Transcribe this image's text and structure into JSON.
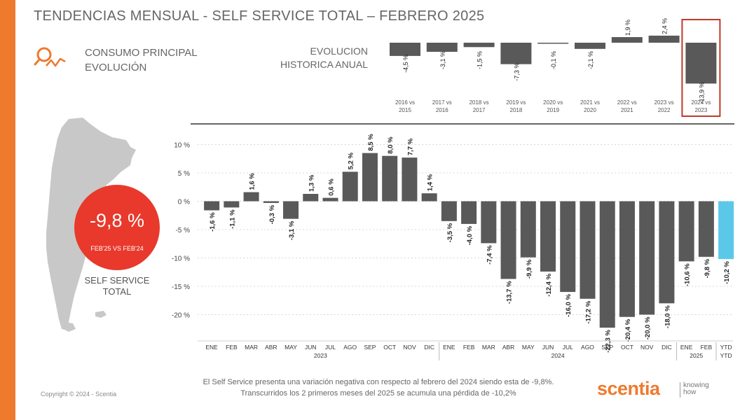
{
  "header": {
    "title": "TENDENCIAS MENSUAL - SELF SERVICE TOTAL –   FEBRERO 2025",
    "consumo_line1": "CONSUMO PRINCIPAL",
    "consumo_line2": "EVOLUCIÓN",
    "evolucion_line1": "EVOLUCION",
    "evolucion_line2": "HISTORICA ANUAL"
  },
  "kpi": {
    "value": "-9,8 %",
    "subtitle": "FEB'25 VS FEB'24",
    "label_line1": "SELF SERVICE",
    "label_line2": "TOTAL",
    "color": "#e8392c"
  },
  "colors": {
    "accent": "#ee7a2e",
    "bar": "#595959",
    "ytd_bar": "#5bc8ea",
    "highlight_box": "#c0392b"
  },
  "chart_data": [
    {
      "type": "bar",
      "categories": [
        [
          "2016 vs",
          "2015"
        ],
        [
          "2017 vs",
          "2016"
        ],
        [
          "2018 vs",
          "2017"
        ],
        [
          "2019 vs",
          "2018"
        ],
        [
          "2020 vs",
          "2019"
        ],
        [
          "2021 vs",
          "2020"
        ],
        [
          "2022 vs",
          "2021"
        ],
        [
          "2023 vs",
          "2022"
        ],
        [
          "2024 vs",
          "2023"
        ]
      ],
      "values": [
        -4.5,
        -3.1,
        -1.5,
        -7.3,
        -0.1,
        -2.1,
        1.9,
        2.4,
        -13.9
      ],
      "labels": [
        "-4,5 %",
        "-3,1 %",
        "-1,5 %",
        "-7,3 %",
        "-0,1 %",
        "-2,1 %",
        "1,9 %",
        "2,4 %",
        "-13,9 %"
      ],
      "highlight_index": 8
    },
    {
      "type": "bar",
      "yticks": [
        10,
        5,
        0,
        -5,
        -10,
        -15,
        -20
      ],
      "ytick_labels": [
        "10 %",
        "5 %",
        "0 %",
        "-5 %",
        "-10 %",
        "-15 %",
        "-20 %"
      ],
      "ylim": [
        -23,
        10
      ],
      "grid": true,
      "categories": [
        "ENE",
        "FEB",
        "MAR",
        "ABR",
        "MAY",
        "JUN",
        "JUL",
        "AGO",
        "SEP",
        "OCT",
        "NOV",
        "DIC",
        "ENE",
        "FEB",
        "MAR",
        "ABR",
        "MAY",
        "JUN",
        "JUL",
        "AGO",
        "SEP",
        "OCT",
        "NOV",
        "DIC",
        "ENE",
        "FEB",
        "YTD"
      ],
      "values": [
        -1.6,
        -1.1,
        1.6,
        -0.3,
        -3.1,
        1.3,
        0.6,
        5.2,
        8.5,
        8.0,
        7.7,
        1.4,
        -3.5,
        -4.0,
        -7.4,
        -13.7,
        -9.9,
        -12.4,
        -16.0,
        -17.2,
        -22.3,
        -20.4,
        -20.0,
        -18.0,
        -10.6,
        -9.8,
        -10.2
      ],
      "labels": [
        "-1,6 %",
        "-1,1 %",
        "1,6 %",
        "-0,3 %",
        "-3,1 %",
        "1,3 %",
        "0,6 %",
        "5,2 %",
        "8,5 %",
        "8,0 %",
        "7,7 %",
        "1,4 %",
        "-3,5 %",
        "-4,0 %",
        "-7,4 %",
        "-13,7 %",
        "-9,9 %",
        "-12,4 %",
        "-16,0 %",
        "-17,2 %",
        "-22,3 %",
        "-20,4 %",
        "-20,0 %",
        "-18,0 %",
        "-10,6 %",
        "-9,8 %",
        "-10,2 %"
      ],
      "groups": [
        {
          "label": "2023",
          "start": 0,
          "end": 11
        },
        {
          "label": "2024",
          "start": 12,
          "end": 23
        },
        {
          "label": "2025",
          "start": 24,
          "end": 25
        },
        {
          "label": "YTD",
          "start": 26,
          "end": 26
        }
      ],
      "ytd_index": 26
    }
  ],
  "footer": {
    "note_line1": "El Self Service presenta una variación negativa con respecto al febrero del 2024 siendo esta de -9,8%.",
    "note_line2": "Transcurridos los 2 primeros meses del 2025 se acumula una pérdida de -10,2%",
    "copyright": "Copyright © 2024 - Scentia",
    "logo_name": "scentia",
    "logo_tag_line1": "knowing",
    "logo_tag_line2": "how"
  }
}
